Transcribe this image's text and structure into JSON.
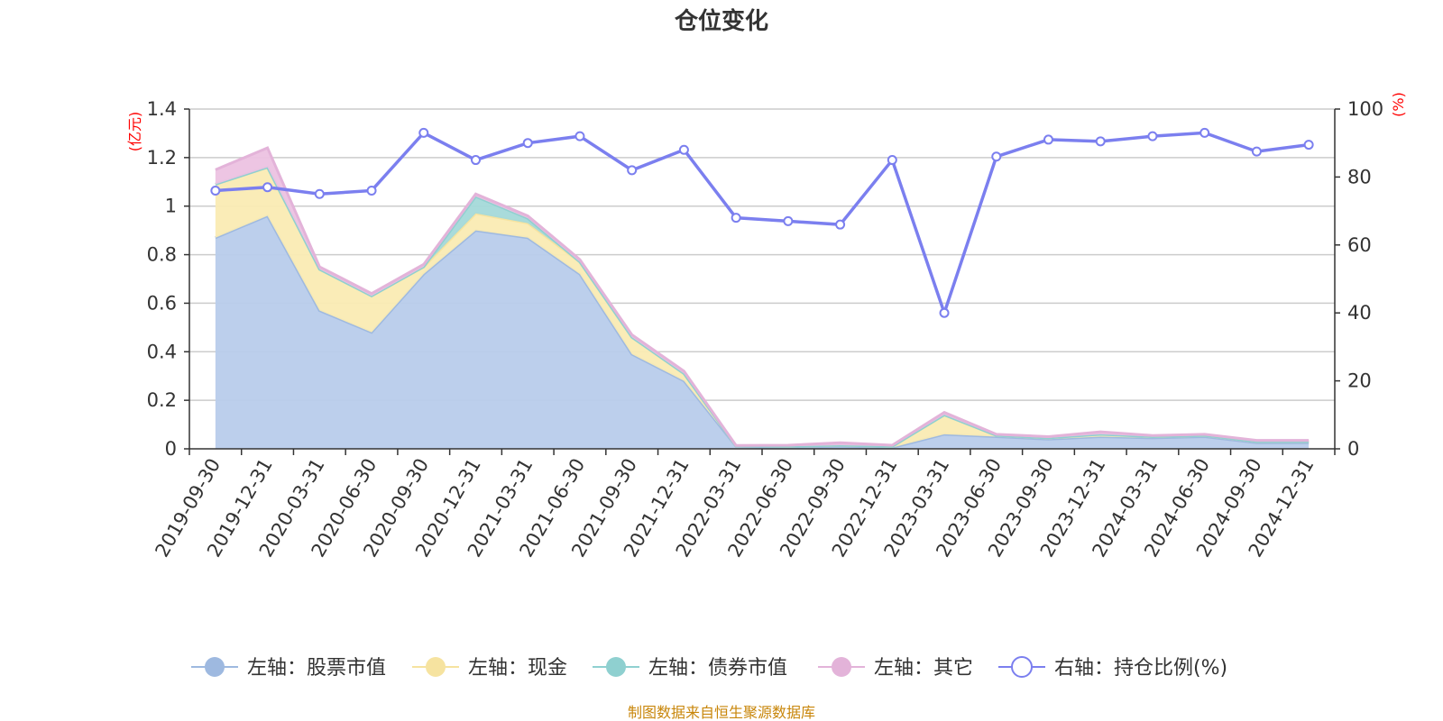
{
  "chart_data": {
    "type": "area",
    "title": "仓位变化",
    "left_axis_unit": "(亿元)",
    "right_axis_unit": "(%)",
    "ylim_left": [
      0,
      1.4
    ],
    "left_ticks": [
      "0",
      "0.2",
      "0.4",
      "0.6",
      "0.8",
      "1",
      "1.2",
      "1.4"
    ],
    "ylim_right": [
      0,
      100
    ],
    "right_ticks": [
      "0",
      "20",
      "40",
      "60",
      "80",
      "100"
    ],
    "categories": [
      "2019-09-30",
      "2019-12-31",
      "2020-03-31",
      "2020-06-30",
      "2020-09-30",
      "2020-12-31",
      "2021-03-31",
      "2021-06-30",
      "2021-09-30",
      "2021-12-31",
      "2022-03-31",
      "2022-06-30",
      "2022-09-30",
      "2022-12-31",
      "2023-03-31",
      "2023-06-30",
      "2023-09-30",
      "2023-12-31",
      "2024-03-31",
      "2024-06-30",
      "2024-09-30",
      "2024-12-31"
    ],
    "stacked_series": [
      {
        "name": "左轴：股票市值",
        "color": "#9eb9e0",
        "fill": "#b8cceb",
        "values": [
          0.87,
          0.96,
          0.57,
          0.48,
          0.72,
          0.9,
          0.87,
          0.72,
          0.39,
          0.28,
          0.01,
          0.005,
          0.01,
          0.005,
          0.06,
          0.05,
          0.04,
          0.05,
          0.045,
          0.05,
          0.025,
          0.025
        ]
      },
      {
        "name": "左轴：现金",
        "color": "#f6e3a0",
        "fill": "#faebb3",
        "values": [
          0.22,
          0.2,
          0.17,
          0.15,
          0.03,
          0.07,
          0.06,
          0.05,
          0.07,
          0.03,
          0.002,
          0.005,
          0.005,
          0.005,
          0.08,
          0.005,
          0.005,
          0.01,
          0.005,
          0.005,
          0.005,
          0.005
        ]
      },
      {
        "name": "左轴：债券市值",
        "color": "#8fd0d0",
        "fill": "#a4d9d9",
        "values": [
          0,
          0,
          0,
          0,
          0,
          0.07,
          0.02,
          0,
          0,
          0,
          0,
          0,
          0,
          0,
          0,
          0,
          0,
          0,
          0,
          0,
          0,
          0
        ]
      },
      {
        "name": "左轴：其它",
        "color": "#e3b3d9",
        "fill": "#ecc2e2",
        "values": [
          0.06,
          0.08,
          0.01,
          0.01,
          0.01,
          0.01,
          0.01,
          0.01,
          0.01,
          0.01,
          0.002,
          0.005,
          0.01,
          0.005,
          0.01,
          0.005,
          0.005,
          0.01,
          0.005,
          0.005,
          0.005,
          0.005
        ]
      }
    ],
    "line_series": {
      "name": "右轴：持仓比例(%)",
      "color": "#7b7fef",
      "values": [
        76,
        77,
        75,
        76,
        93,
        85,
        90,
        92,
        82,
        88,
        68,
        67,
        66,
        85,
        40,
        86,
        91,
        90.5,
        92,
        93,
        87.5,
        89.5
      ]
    },
    "legend_position": "bottom",
    "source": "制图数据来自恒生聚源数据库",
    "source_color": "#c8860a"
  }
}
